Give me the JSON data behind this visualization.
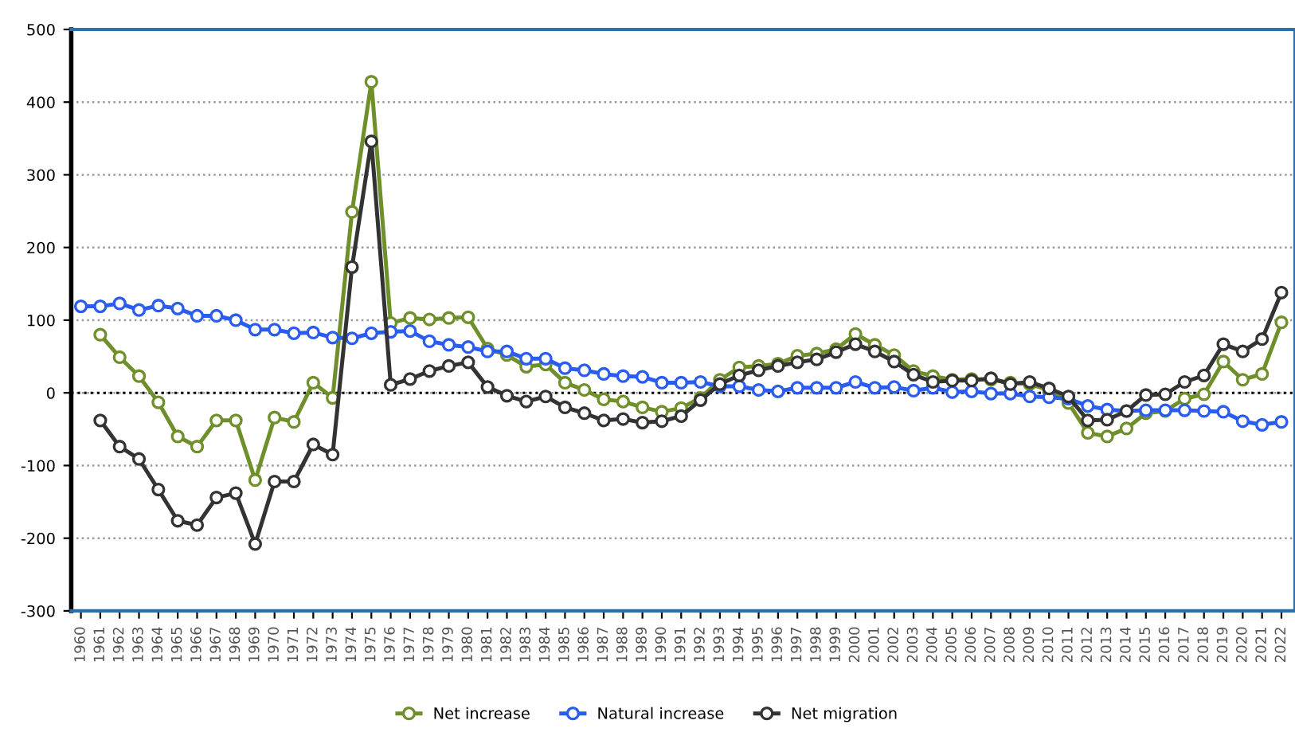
{
  "chart_data": {
    "type": "line",
    "categories": [
      "1960",
      "1961",
      "1962",
      "1963",
      "1964",
      "1965",
      "1966",
      "1967",
      "1968",
      "1969",
      "1970",
      "1971",
      "1972",
      "1973",
      "1974",
      "1975",
      "1976",
      "1977",
      "1978",
      "1979",
      "1980",
      "1981",
      "1982",
      "1983",
      "1984",
      "1985",
      "1986",
      "1987",
      "1988",
      "1989",
      "1990",
      "1991",
      "1992",
      "1993",
      "1994",
      "1995",
      "1996",
      "1997",
      "1998",
      "1999",
      "2000",
      "2001",
      "2002",
      "2003",
      "2004",
      "2005",
      "2006",
      "2007",
      "2008",
      "2009",
      "2010",
      "2011",
      "2012",
      "2013",
      "2014",
      "2015",
      "2016",
      "2017",
      "2018",
      "2019",
      "2020",
      "2021",
      "2022"
    ],
    "series": [
      {
        "name": "Net increase",
        "color": "#6f8f2a",
        "values": [
          null,
          80,
          49,
          23,
          -13,
          -60,
          -74,
          -38,
          -38,
          -120,
          -34,
          -40,
          14,
          -7,
          249,
          428,
          96,
          103,
          101,
          103,
          104,
          61,
          52,
          36,
          39,
          14,
          4,
          -9,
          -12,
          -20,
          -26,
          -21,
          -7,
          18,
          35,
          37,
          40,
          51,
          54,
          60,
          81,
          66,
          52,
          30,
          23,
          18,
          19,
          18,
          14,
          12,
          4,
          -14,
          -55,
          -60,
          -49,
          -28,
          -25,
          -8,
          -2,
          43,
          18,
          26,
          97
        ]
      },
      {
        "name": "Natural increase",
        "color": "#2a5cf0",
        "values": [
          119,
          119,
          123,
          114,
          120,
          116,
          106,
          106,
          100,
          87,
          87,
          82,
          83,
          76,
          75,
          82,
          84,
          85,
          71,
          66,
          63,
          57,
          57,
          47,
          47,
          34,
          31,
          26,
          23,
          22,
          14,
          14,
          15,
          9,
          9,
          4,
          2,
          7,
          7,
          7,
          15,
          7,
          8,
          3,
          7,
          1,
          2,
          -1,
          -1,
          -5,
          -6,
          -8,
          -18,
          -23,
          -25,
          -24,
          -24,
          -24,
          -25,
          -26,
          -39,
          -44,
          -40
        ]
      },
      {
        "name": "Net migration",
        "color": "#333333",
        "values": [
          null,
          -38,
          -74,
          -91,
          -133,
          -176,
          -182,
          -144,
          -138,
          -208,
          -122,
          -122,
          -71,
          -85,
          173,
          346,
          11,
          19,
          30,
          37,
          42,
          8,
          -4,
          -12,
          -5,
          -20,
          -28,
          -38,
          -36,
          -41,
          -39,
          -32,
          -10,
          12,
          24,
          31,
          37,
          42,
          46,
          56,
          67,
          57,
          43,
          25,
          15,
          17,
          17,
          20,
          12,
          15,
          6,
          -5,
          -38,
          -37,
          -25,
          -3,
          -2,
          15,
          24,
          67,
          57,
          74,
          138
        ]
      }
    ],
    "ylim": [
      -300,
      500
    ],
    "yticks": [
      -300,
      -200,
      -100,
      0,
      100,
      200,
      300,
      400,
      500
    ],
    "ref_lines": [
      {
        "axis": "y",
        "value": 0,
        "color": "#000000",
        "line_style": "dotted"
      }
    ],
    "grid": "y",
    "legend": "bottom",
    "marker": "circle",
    "line_style": "solid"
  }
}
